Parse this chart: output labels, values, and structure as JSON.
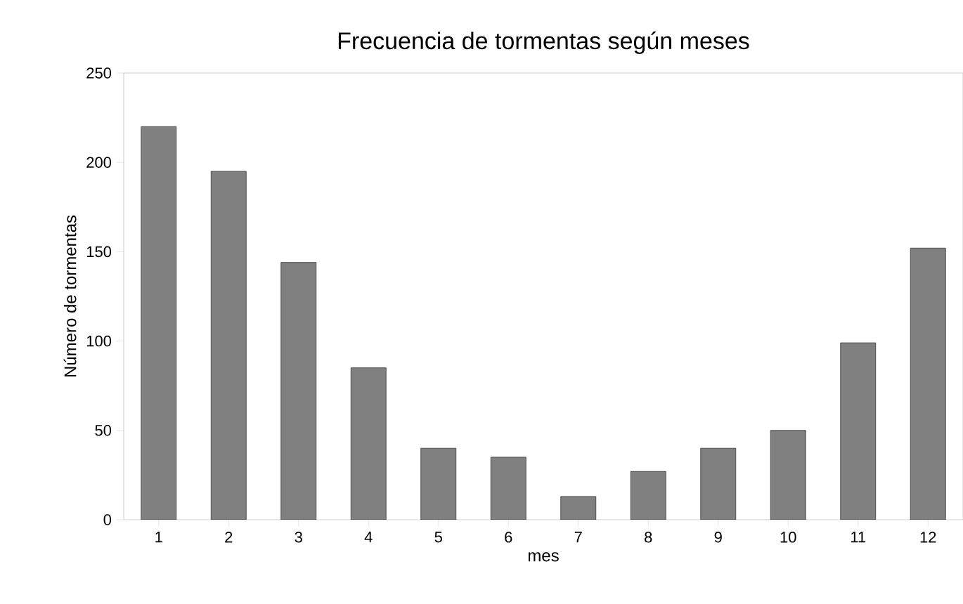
{
  "chart_data": {
    "type": "bar",
    "title": "Frecuencia de tormentas según meses",
    "xlabel": "mes",
    "ylabel": "Número de tormentas",
    "categories": [
      "1",
      "2",
      "3",
      "4",
      "5",
      "6",
      "7",
      "8",
      "9",
      "10",
      "11",
      "12"
    ],
    "values": [
      220,
      195,
      144,
      85,
      40,
      35,
      13,
      27,
      40,
      50,
      99,
      152
    ],
    "color": "#808080",
    "ylim": [
      0,
      250
    ],
    "yticks": [
      0,
      50,
      100,
      150,
      200,
      250
    ],
    "grid": false
  }
}
